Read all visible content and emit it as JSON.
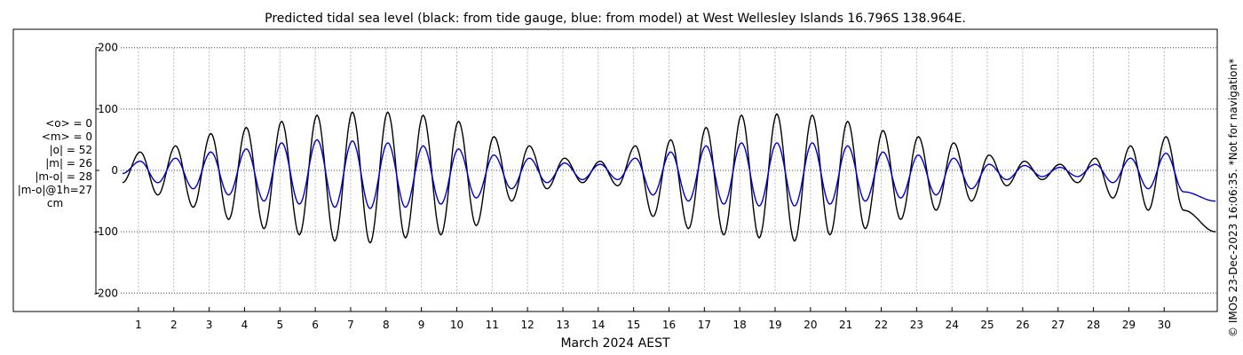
{
  "chart_data": {
    "type": "line",
    "title": "Predicted tidal sea level (black: from tide gauge, blue: from model) at West Wellesley Islands 16.796S 138.964E.",
    "xlabel": "March 2024 AEST",
    "ylabel": "",
    "xlim": [
      0.5,
      31.5
    ],
    "ylim": [
      -230,
      230
    ],
    "yticks": [
      -200,
      -100,
      0,
      100,
      200
    ],
    "xticks": [
      1,
      2,
      3,
      4,
      5,
      6,
      7,
      8,
      9,
      10,
      11,
      12,
      13,
      14,
      15,
      16,
      17,
      18,
      19,
      20,
      21,
      22,
      23,
      24,
      25,
      26,
      27,
      28,
      29,
      30
    ],
    "grid": true,
    "legend": "none",
    "x_unit": "day of March 2024",
    "y_unit": "cm",
    "series": [
      {
        "color": "#000000",
        "x": [
          0.55,
          1.05,
          1.55,
          2.05,
          2.55,
          3.05,
          3.55,
          4.05,
          4.55,
          5.05,
          5.55,
          6.05,
          6.55,
          7.05,
          7.55,
          8.05,
          8.55,
          9.05,
          9.55,
          10.05,
          10.55,
          11.05,
          11.55,
          12.05,
          12.55,
          13.05,
          13.55,
          14.05,
          14.55,
          15.05,
          15.55,
          16.05,
          16.55,
          17.05,
          17.55,
          18.05,
          18.55,
          19.05,
          19.55,
          20.05,
          20.55,
          21.05,
          21.55,
          22.05,
          22.55,
          23.05,
          23.55,
          24.05,
          24.55,
          25.05,
          25.55,
          26.05,
          26.55,
          27.05,
          27.55,
          28.05,
          28.55,
          29.05,
          29.55,
          30.05,
          30.55,
          31.45
        ],
        "values": [
          -20,
          30,
          -40,
          40,
          -60,
          60,
          -80,
          70,
          -95,
          80,
          -105,
          90,
          -115,
          95,
          -118,
          95,
          -110,
          90,
          -105,
          80,
          -90,
          55,
          -50,
          40,
          -30,
          20,
          -20,
          15,
          -25,
          40,
          -75,
          50,
          -95,
          70,
          -105,
          90,
          -110,
          92,
          -115,
          90,
          -105,
          80,
          -95,
          65,
          -80,
          55,
          -65,
          45,
          -50,
          25,
          -25,
          15,
          -15,
          10,
          -20,
          20,
          -45,
          40,
          -65,
          55,
          -65,
          -100
        ]
      },
      {
        "color": "#0000cc",
        "x": [
          0.55,
          1.05,
          1.55,
          2.05,
          2.55,
          3.05,
          3.55,
          4.05,
          4.55,
          5.05,
          5.55,
          6.05,
          6.55,
          7.05,
          7.55,
          8.05,
          8.55,
          9.05,
          9.55,
          10.05,
          10.55,
          11.05,
          11.55,
          12.05,
          12.55,
          13.05,
          13.55,
          14.05,
          14.55,
          15.05,
          15.55,
          16.05,
          16.55,
          17.05,
          17.55,
          18.05,
          18.55,
          19.05,
          19.55,
          20.05,
          20.55,
          21.05,
          21.55,
          22.05,
          22.55,
          23.05,
          23.55,
          24.05,
          24.55,
          25.05,
          25.55,
          26.05,
          26.55,
          27.05,
          27.55,
          28.05,
          28.55,
          29.05,
          29.55,
          30.05,
          30.55,
          31.45
        ],
        "values": [
          -5,
          15,
          -20,
          20,
          -30,
          30,
          -40,
          35,
          -50,
          45,
          -55,
          50,
          -60,
          48,
          -62,
          45,
          -60,
          40,
          -55,
          35,
          -45,
          25,
          -30,
          20,
          -20,
          12,
          -15,
          10,
          -15,
          20,
          -40,
          30,
          -50,
          40,
          -55,
          45,
          -58,
          45,
          -58,
          45,
          -55,
          40,
          -50,
          30,
          -45,
          25,
          -40,
          20,
          -30,
          10,
          -15,
          8,
          -10,
          5,
          -10,
          10,
          -20,
          20,
          -30,
          28,
          -35,
          -50
        ]
      }
    ],
    "stats_lines": [
      "<o> = 0",
      "<m> = 0",
      "|o| = 52",
      "|m| = 26",
      "|m-o| = 28",
      "|m-o|@1h=27",
      "cm"
    ],
    "credit": "© IMOS 23-Dec-2023 16:06:35. *Not for navigation*"
  }
}
